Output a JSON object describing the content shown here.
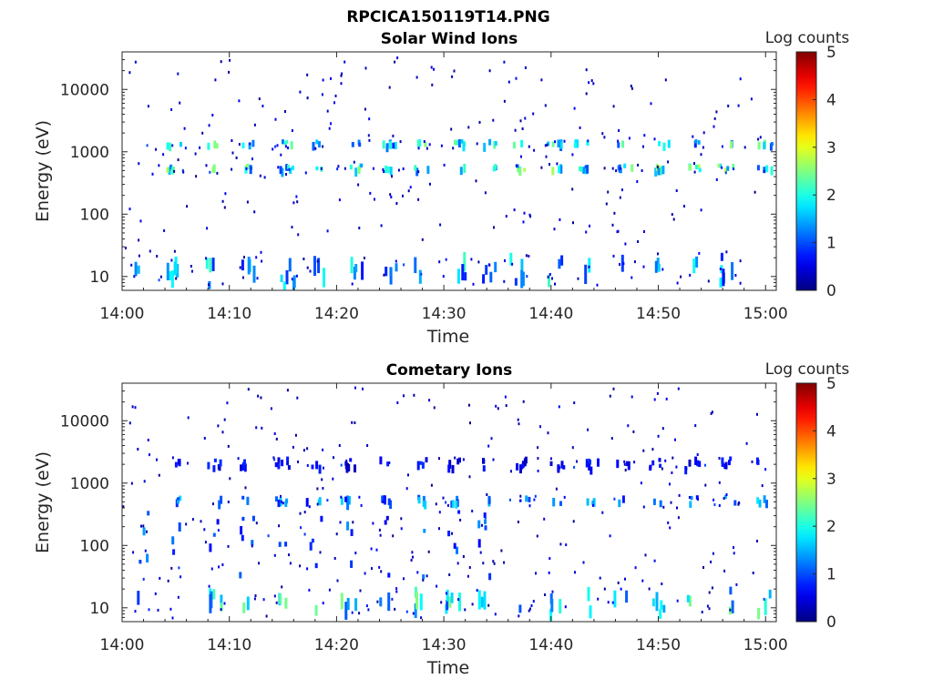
{
  "figure": {
    "title": "RPCICA150119T14.PNG"
  },
  "chart_data": [
    {
      "type": "heatmap",
      "title": "Solar Wind Ions",
      "xlabel": "Time",
      "ylabel": "Energy (eV)",
      "x_range": [
        "14:00",
        "15:01"
      ],
      "x_ticks": [
        "14:00",
        "14:10",
        "14:20",
        "14:30",
        "14:40",
        "14:50",
        "15:00"
      ],
      "y_scale": "log",
      "y_range": [
        6,
        40000
      ],
      "y_ticks": [
        10,
        100,
        1000,
        10000
      ],
      "y_tick_labels": [
        "10",
        "100",
        "1000",
        "10000"
      ],
      "colorbar": {
        "label": "Log counts",
        "range": [
          0,
          5
        ],
        "ticks": [
          "0",
          "1",
          "2",
          "3",
          "4",
          "5"
        ],
        "colormap": "jet"
      },
      "grid": false,
      "bands": [
        {
          "energy_range": [
            480,
            650
          ],
          "intensity_peak": 2.6,
          "note_time_min": 2,
          "note_time_max": 60
        },
        {
          "energy_range": [
            1200,
            1600
          ],
          "intensity_peak": 2.3,
          "note_time_min": 2,
          "note_time_max": 60
        },
        {
          "energy_range": [
            7,
            25
          ],
          "intensity_peak": 2.0,
          "note_time_min": 1,
          "note_time_max": 59
        }
      ],
      "bursts_min": [
        1.7,
        4.7,
        8.4,
        11.7,
        15.3,
        18.3,
        21.8,
        24.8,
        27.8,
        31.2,
        34.2,
        36.8,
        40.2,
        42.8,
        46.8,
        50.3,
        53.1,
        56.2,
        59.8
      ]
    },
    {
      "type": "heatmap",
      "title": "Cometary Ions",
      "xlabel": "Time",
      "ylabel": "Energy (eV)",
      "x_range": [
        "14:00",
        "15:01"
      ],
      "x_ticks": [
        "14:00",
        "14:10",
        "14:20",
        "14:30",
        "14:40",
        "14:50",
        "15:00"
      ],
      "y_scale": "log",
      "y_range": [
        6,
        40000
      ],
      "y_ticks": [
        10,
        100,
        1000,
        10000
      ],
      "y_tick_labels": [
        "10",
        "100",
        "1000",
        "10000"
      ],
      "colorbar": {
        "label": "Log counts",
        "range": [
          0,
          5
        ],
        "ticks": [
          "0",
          "1",
          "2",
          "3",
          "4",
          "5"
        ],
        "colormap": "jet"
      },
      "grid": false,
      "bands": [
        {
          "energy_range": [
            7,
            22
          ],
          "intensity_peak": 2.4,
          "note_time_min": 1,
          "note_time_max": 60
        },
        {
          "energy_range": [
            30,
            400
          ],
          "intensity_peak": 1.3,
          "note_time_min": 0,
          "note_time_max": 34
        },
        {
          "energy_range": [
            450,
            650
          ],
          "intensity_peak": 1.6,
          "note_time_min": 5,
          "note_time_max": 60
        },
        {
          "energy_range": [
            1600,
            2700
          ],
          "intensity_peak": 0.8,
          "note_time_min": 2,
          "note_time_max": 60
        }
      ],
      "bursts_min": [
        1.7,
        5.2,
        8.5,
        11.5,
        14.8,
        17.8,
        21.0,
        24.3,
        27.8,
        30.7,
        33.8,
        37.2,
        40.5,
        43.8,
        46.5,
        49.8,
        53.1,
        56.5,
        59.8
      ]
    }
  ]
}
